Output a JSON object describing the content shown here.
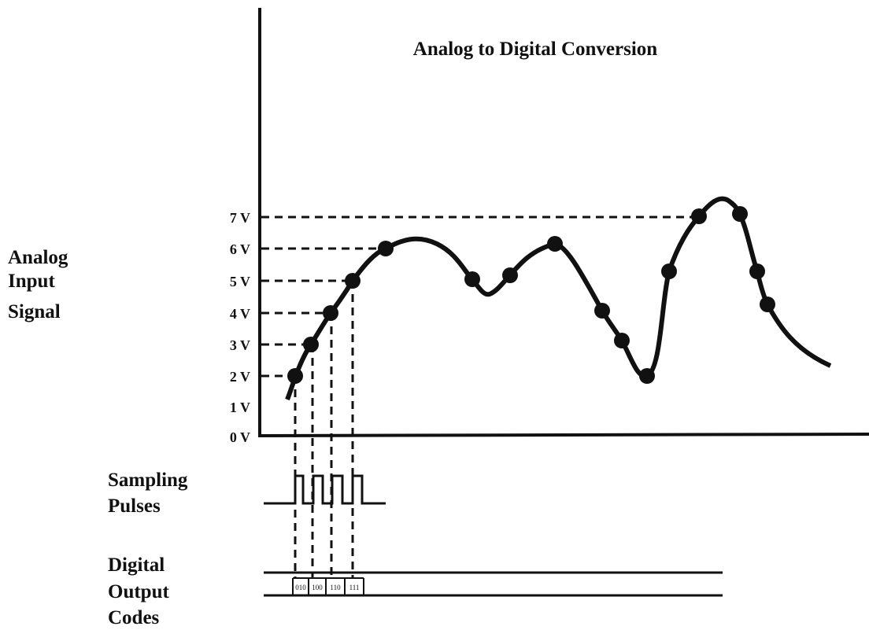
{
  "title": "Analog to Digital Conversion",
  "voltage_labels": [
    "7 V",
    "6 V",
    "5 V",
    "4 V",
    "3 V",
    "2 V",
    "1 V",
    "0 V"
  ],
  "analog_label": [
    "Analog",
    "Input",
    "Signal"
  ],
  "sampling_label": [
    "Sampling",
    "Pulses"
  ],
  "digital_label": [
    "Digital",
    "Output",
    "Codes"
  ],
  "codes": [
    "010",
    "100",
    "110",
    "111"
  ]
}
